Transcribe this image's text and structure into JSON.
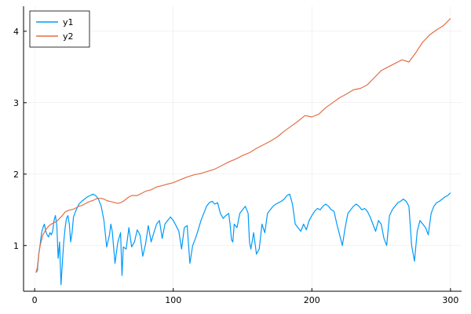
{
  "chart_data": {
    "type": "line",
    "title": "",
    "xlabel": "",
    "ylabel": "",
    "xlim": [
      -8,
      308
    ],
    "ylim": [
      0.36,
      4.35
    ],
    "xticks": [
      0,
      100,
      200,
      300
    ],
    "yticks": [
      1,
      2,
      3,
      4
    ],
    "grid": true,
    "legend_position": "top-left",
    "series": [
      {
        "name": "y1",
        "color": "#009af9",
        "x": [
          1,
          2,
          3,
          4,
          5,
          6,
          7,
          8,
          9,
          10,
          11,
          12,
          13,
          14,
          15,
          16,
          17,
          18,
          19,
          20,
          21,
          22,
          23,
          24,
          25,
          26,
          27,
          28,
          30,
          32,
          34,
          36,
          38,
          40,
          42,
          44,
          46,
          48,
          50,
          52,
          54,
          55,
          56,
          58,
          60,
          62,
          63,
          64,
          66,
          68,
          70,
          72,
          74,
          76,
          78,
          80,
          82,
          84,
          86,
          88,
          90,
          92,
          94,
          96,
          98,
          100,
          102,
          104,
          106,
          108,
          110,
          112,
          114,
          116,
          118,
          120,
          122,
          124,
          126,
          128,
          130,
          132,
          134,
          136,
          138,
          140,
          141,
          142,
          143,
          144,
          146,
          148,
          150,
          152,
          154,
          155,
          156,
          158,
          160,
          162,
          164,
          166,
          168,
          170,
          172,
          174,
          176,
          178,
          180,
          182,
          184,
          186,
          188,
          190,
          192,
          194,
          196,
          198,
          200,
          202,
          204,
          206,
          208,
          210,
          212,
          214,
          216,
          218,
          220,
          222,
          224,
          226,
          228,
          230,
          232,
          234,
          236,
          238,
          240,
          242,
          244,
          246,
          248,
          250,
          252,
          254,
          256,
          258,
          260,
          262,
          264,
          266,
          268,
          270,
          272,
          274,
          276,
          278,
          280,
          282,
          284,
          286,
          288,
          290,
          292,
          294,
          296,
          298,
          300
        ],
        "y": [
          0.62,
          0.65,
          0.88,
          1.02,
          1.18,
          1.25,
          1.3,
          1.2,
          1.15,
          1.12,
          1.18,
          1.15,
          1.2,
          1.35,
          1.42,
          1.28,
          0.82,
          1.05,
          0.45,
          0.75,
          1.05,
          1.25,
          1.38,
          1.42,
          1.3,
          1.05,
          1.18,
          1.4,
          1.5,
          1.58,
          1.62,
          1.65,
          1.68,
          1.7,
          1.72,
          1.7,
          1.65,
          1.55,
          1.35,
          0.98,
          1.15,
          1.3,
          1.2,
          0.75,
          1.05,
          1.18,
          0.58,
          0.98,
          0.95,
          1.25,
          0.98,
          1.05,
          1.22,
          1.15,
          0.85,
          1.02,
          1.28,
          1.05,
          1.18,
          1.3,
          1.35,
          1.1,
          1.3,
          1.35,
          1.4,
          1.35,
          1.28,
          1.2,
          0.95,
          1.25,
          1.28,
          0.75,
          1.0,
          1.1,
          1.22,
          1.35,
          1.45,
          1.55,
          1.6,
          1.62,
          1.58,
          1.6,
          1.45,
          1.38,
          1.42,
          1.45,
          1.3,
          1.08,
          1.05,
          1.3,
          1.25,
          1.45,
          1.5,
          1.55,
          1.45,
          1.05,
          0.95,
          1.18,
          0.88,
          0.95,
          1.3,
          1.18,
          1.45,
          1.5,
          1.55,
          1.58,
          1.6,
          1.62,
          1.65,
          1.7,
          1.72,
          1.58,
          1.3,
          1.25,
          1.2,
          1.3,
          1.22,
          1.35,
          1.42,
          1.48,
          1.52,
          1.5,
          1.55,
          1.58,
          1.55,
          1.5,
          1.48,
          1.3,
          1.15,
          1.0,
          1.25,
          1.45,
          1.5,
          1.55,
          1.58,
          1.55,
          1.5,
          1.52,
          1.48,
          1.4,
          1.3,
          1.2,
          1.35,
          1.3,
          1.1,
          1.0,
          1.42,
          1.5,
          1.55,
          1.6,
          1.62,
          1.65,
          1.62,
          1.55,
          1.0,
          0.78,
          1.2,
          1.35,
          1.3,
          1.25,
          1.15,
          1.45,
          1.55,
          1.6,
          1.62,
          1.65,
          1.68,
          1.7,
          1.74
        ]
      },
      {
        "name": "y2",
        "color": "#e26f46",
        "x": [
          1,
          2,
          3,
          4,
          5,
          6,
          8,
          10,
          12,
          14,
          16,
          18,
          20,
          22,
          24,
          26,
          28,
          30,
          32,
          34,
          36,
          38,
          40,
          42,
          44,
          46,
          48,
          50,
          52,
          54,
          56,
          58,
          60,
          62,
          64,
          66,
          68,
          70,
          72,
          74,
          76,
          78,
          80,
          82,
          84,
          86,
          88,
          90,
          92,
          94,
          96,
          98,
          100,
          105,
          110,
          115,
          120,
          125,
          130,
          135,
          140,
          145,
          150,
          155,
          160,
          165,
          170,
          175,
          180,
          185,
          190,
          195,
          200,
          205,
          210,
          215,
          220,
          225,
          230,
          235,
          240,
          245,
          250,
          255,
          260,
          265,
          270,
          275,
          280,
          285,
          290,
          295,
          300
        ],
        "y": [
          0.62,
          0.7,
          0.88,
          1.0,
          1.08,
          1.15,
          1.22,
          1.27,
          1.3,
          1.32,
          1.34,
          1.38,
          1.42,
          1.47,
          1.49,
          1.5,
          1.51,
          1.53,
          1.55,
          1.56,
          1.58,
          1.6,
          1.62,
          1.63,
          1.65,
          1.66,
          1.66,
          1.65,
          1.63,
          1.62,
          1.61,
          1.6,
          1.59,
          1.6,
          1.62,
          1.65,
          1.68,
          1.7,
          1.7,
          1.7,
          1.72,
          1.74,
          1.76,
          1.77,
          1.78,
          1.8,
          1.82,
          1.83,
          1.84,
          1.85,
          1.86,
          1.87,
          1.88,
          1.92,
          1.96,
          1.99,
          2.01,
          2.04,
          2.07,
          2.12,
          2.17,
          2.21,
          2.26,
          2.3,
          2.36,
          2.41,
          2.46,
          2.52,
          2.6,
          2.67,
          2.74,
          2.82,
          2.8,
          2.84,
          2.93,
          3.0,
          3.07,
          3.12,
          3.18,
          3.2,
          3.25,
          3.35,
          3.45,
          3.5,
          3.55,
          3.6,
          3.57,
          3.7,
          3.85,
          3.95,
          4.02,
          4.08,
          4.18
        ]
      }
    ]
  }
}
